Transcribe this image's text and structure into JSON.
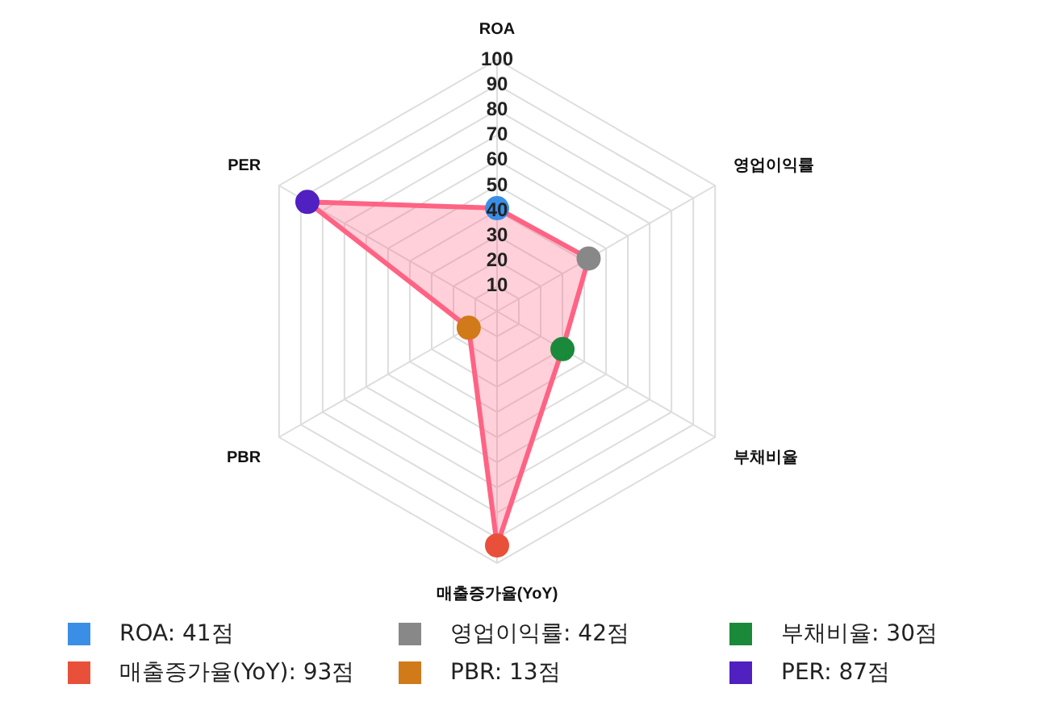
{
  "chart_data": {
    "type": "radar",
    "categories": [
      "ROA",
      "영업이익률",
      "부채비율",
      "매출증가율(YoY)",
      "PBR",
      "PER"
    ],
    "series": [
      {
        "color": "#ff6384",
        "values": [
          41,
          42,
          30,
          93,
          13,
          87
        ],
        "colors": [
          "#3a8ee6",
          "#888888",
          "#1a8a3a",
          "#e8503a",
          "#d07a1a",
          "#5020c0"
        ]
      }
    ],
    "annotations": [
      "ROA: 41점",
      "영업이익률: 42점",
      "부채비율: 30점",
      "매출증가율(YoY): 93점",
      "PBR: 13점",
      "PER: 87점"
    ],
    "ylim": [
      0,
      100
    ],
    "yticks": [
      10,
      20,
      30,
      40,
      50,
      60,
      70,
      80,
      90,
      100
    ],
    "grid": true,
    "marker": "circle"
  }
}
